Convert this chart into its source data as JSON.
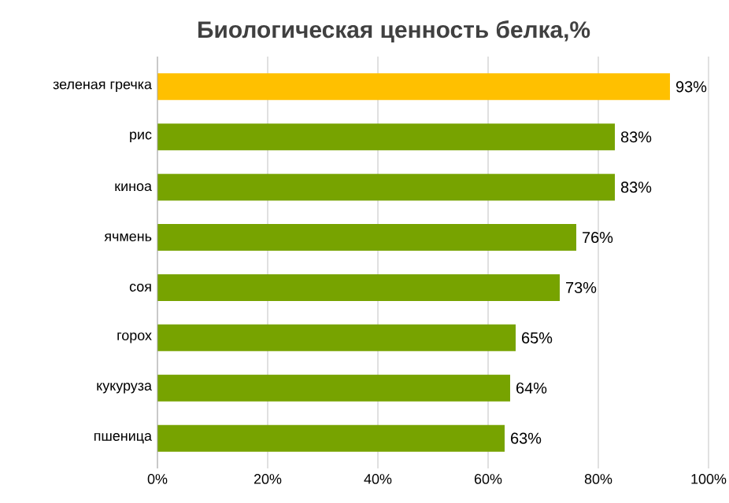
{
  "chart_data": {
    "type": "bar",
    "orientation": "horizontal",
    "title": "Биологическая ценность белка,%",
    "categories": [
      "зеленая гречка",
      "рис",
      "киноа",
      "ячмень",
      "соя",
      "горох",
      "кукуруза",
      "пшеница"
    ],
    "values": [
      93,
      83,
      83,
      76,
      73,
      65,
      64,
      63
    ],
    "colors": [
      "#ffc000",
      "#77a300",
      "#77a300",
      "#77a300",
      "#77a300",
      "#77a300",
      "#77a300",
      "#77a300"
    ],
    "value_labels": [
      "93%",
      "83%",
      "83%",
      "76%",
      "73%",
      "65%",
      "64%",
      "63%"
    ],
    "xlim": [
      0,
      100
    ],
    "xticks": [
      {
        "value": 0,
        "label": "0%"
      },
      {
        "value": 20,
        "label": "20%"
      },
      {
        "value": 40,
        "label": "40%"
      },
      {
        "value": 60,
        "label": "60%"
      },
      {
        "value": 80,
        "label": "80%"
      },
      {
        "value": 100,
        "label": "100%"
      }
    ],
    "grid": "x"
  }
}
